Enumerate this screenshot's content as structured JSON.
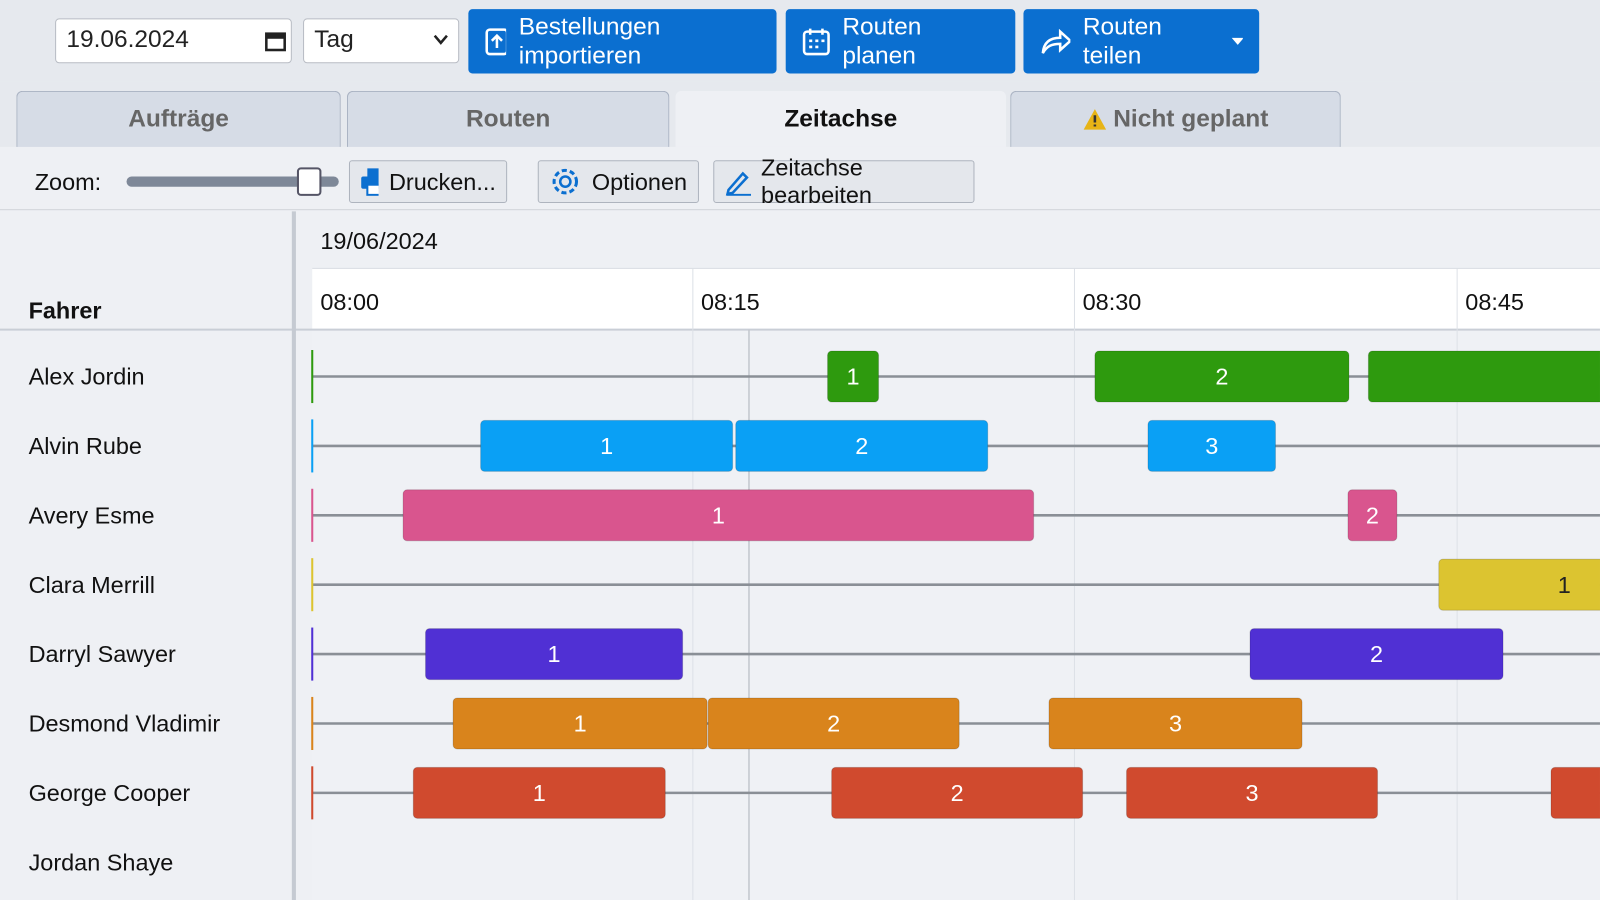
{
  "toolbar": {
    "date": "19.06.2024",
    "view": "Tag",
    "buttons": [
      "Bestellungen importieren",
      "Routen planen",
      "Routen teilen"
    ]
  },
  "tabs": {
    "items": [
      "Aufträge",
      "Routen",
      "Zeitachse",
      "Nicht geplant"
    ],
    "active": 2
  },
  "tools": {
    "zoom_label": "Zoom:",
    "buttons": [
      "Drucken...",
      "Optionen",
      "Zeitachse bearbeiten"
    ]
  },
  "timeline": {
    "date": "19/06/2024",
    "column_header": "Fahrer",
    "times": [
      "08:00",
      "08:15",
      "08:30",
      "08:45"
    ],
    "drivers": [
      {
        "name": "Alex Jordin",
        "color": "#2e9a0e",
        "stops": [
          "1",
          "2",
          null
        ]
      },
      {
        "name": "Alvin Rube",
        "color": "#0aa0f5",
        "stops": [
          "1",
          "2",
          "3"
        ]
      },
      {
        "name": "Avery Esme",
        "color": "#d9558e",
        "stops": [
          "1",
          "2"
        ]
      },
      {
        "name": "Clara Merrill",
        "color": "#dcc430",
        "stops": [
          "1"
        ]
      },
      {
        "name": "Darryl Sawyer",
        "color": "#5030d4",
        "stops": [
          "1",
          "2"
        ]
      },
      {
        "name": "Desmond Vladimir",
        "color": "#d9841c",
        "stops": [
          "1",
          "2",
          "3"
        ]
      },
      {
        "name": "George Cooper",
        "color": "#d04a2e",
        "stops": [
          "1",
          "2",
          "3",
          null
        ]
      },
      {
        "name": "Jordan Shaye",
        "color": "#999999",
        "stops": []
      }
    ]
  }
}
